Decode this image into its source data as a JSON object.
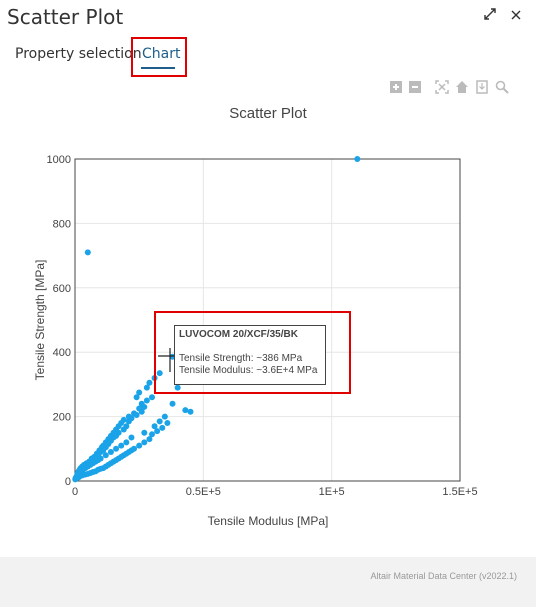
{
  "window": {
    "title": "Scatter Plot",
    "maximize_icon": "expand-icon",
    "close_icon": "close-icon"
  },
  "tabs": [
    {
      "label": "Property selection",
      "active": false
    },
    {
      "label": "Chart",
      "active": true
    }
  ],
  "toolbar": [
    "zoom-in-icon",
    "zoom-out-icon",
    "autoscale-icon",
    "home-icon",
    "download-icon",
    "zoom-icon"
  ],
  "tooltip": {
    "title": "LUVOCOM 20/XCF/35/BK",
    "line1": "Tensile Strength: ~386 MPa",
    "line2": "Tensile Modulus: ~3.6E+4 MPa"
  },
  "footer": {
    "text": "Altair Material Data Center (v2022.1)"
  },
  "colors": {
    "point": "#1aa3e8",
    "accent": "#1f5e8a",
    "highlight": "#e00000"
  },
  "chart_data": {
    "type": "scatter",
    "title": "Scatter Plot",
    "xlabel": "Tensile Modulus [MPa]",
    "ylabel": "Tensile Strength [MPa]",
    "xlim": [
      0,
      150000
    ],
    "ylim": [
      0,
      1000
    ],
    "x_ticks": [
      0,
      50000,
      100000,
      150000
    ],
    "x_tick_labels": [
      "0",
      "0.5E+5",
      "1E+5",
      "1.5E+5"
    ],
    "y_ticks": [
      0,
      200,
      400,
      600,
      800,
      1000
    ],
    "y_tick_labels": [
      "0",
      "200",
      "400",
      "600",
      "800",
      "1000"
    ],
    "grid": true,
    "series": [
      {
        "x": [
          110000,
          5000,
          38000,
          33000,
          31000,
          29000,
          28000,
          25000,
          24000,
          40000,
          45000,
          43000,
          38000,
          35000,
          33000,
          31000,
          27000,
          22000,
          20000,
          18000,
          16000,
          14000,
          12000,
          10000,
          9000,
          8000,
          7000,
          6000,
          5000,
          4000,
          3000,
          2500,
          2000,
          1500,
          1000,
          800,
          600,
          400,
          26000,
          25000,
          23000,
          21000,
          19000,
          18000,
          17000,
          16000,
          15000,
          14000,
          13000,
          12000,
          11000,
          10500,
          9500,
          8500,
          7500,
          6500,
          5500,
          4500,
          3500,
          2800,
          2200,
          1800,
          1400,
          1100,
          900,
          700,
          500,
          300,
          200,
          100,
          30000,
          28000,
          27000,
          26000,
          24000,
          22000,
          21000,
          20000,
          19000,
          17000,
          16000,
          15000,
          14000,
          13000,
          12000,
          11000,
          10000,
          9000,
          8000,
          7000,
          6000,
          5000,
          4000,
          3000,
          2000,
          1000,
          36000,
          34000,
          32000,
          30000,
          29000,
          27000,
          25000,
          23000,
          22000,
          21000,
          20000,
          19000,
          18000,
          17000,
          16000,
          15000,
          14000,
          13000,
          12000,
          11000,
          10000,
          9000,
          8000,
          7000,
          6000,
          5000,
          4000,
          3000,
          2000,
          1500,
          1000,
          500
        ],
        "y": [
          1000,
          710,
          386,
          335,
          320,
          305,
          290,
          275,
          260,
          290,
          215,
          220,
          240,
          200,
          185,
          170,
          150,
          135,
          120,
          110,
          100,
          90,
          80,
          70,
          65,
          60,
          55,
          50,
          45,
          40,
          35,
          30,
          25,
          20,
          15,
          12,
          10,
          8,
          240,
          225,
          210,
          200,
          190,
          180,
          170,
          160,
          150,
          140,
          130,
          120,
          110,
          105,
          95,
          85,
          75,
          70,
          60,
          55,
          50,
          45,
          40,
          35,
          30,
          25,
          20,
          15,
          12,
          10,
          8,
          5,
          260,
          250,
          230,
          215,
          205,
          195,
          185,
          170,
          160,
          150,
          140,
          135,
          125,
          115,
          105,
          95,
          90,
          80,
          70,
          65,
          60,
          50,
          45,
          40,
          30,
          20,
          180,
          165,
          155,
          145,
          130,
          120,
          110,
          100,
          95,
          90,
          85,
          80,
          75,
          70,
          65,
          60,
          55,
          50,
          45,
          40,
          38,
          35,
          30,
          28,
          25,
          22,
          20,
          18,
          15,
          12,
          10,
          8
        ]
      }
    ]
  }
}
